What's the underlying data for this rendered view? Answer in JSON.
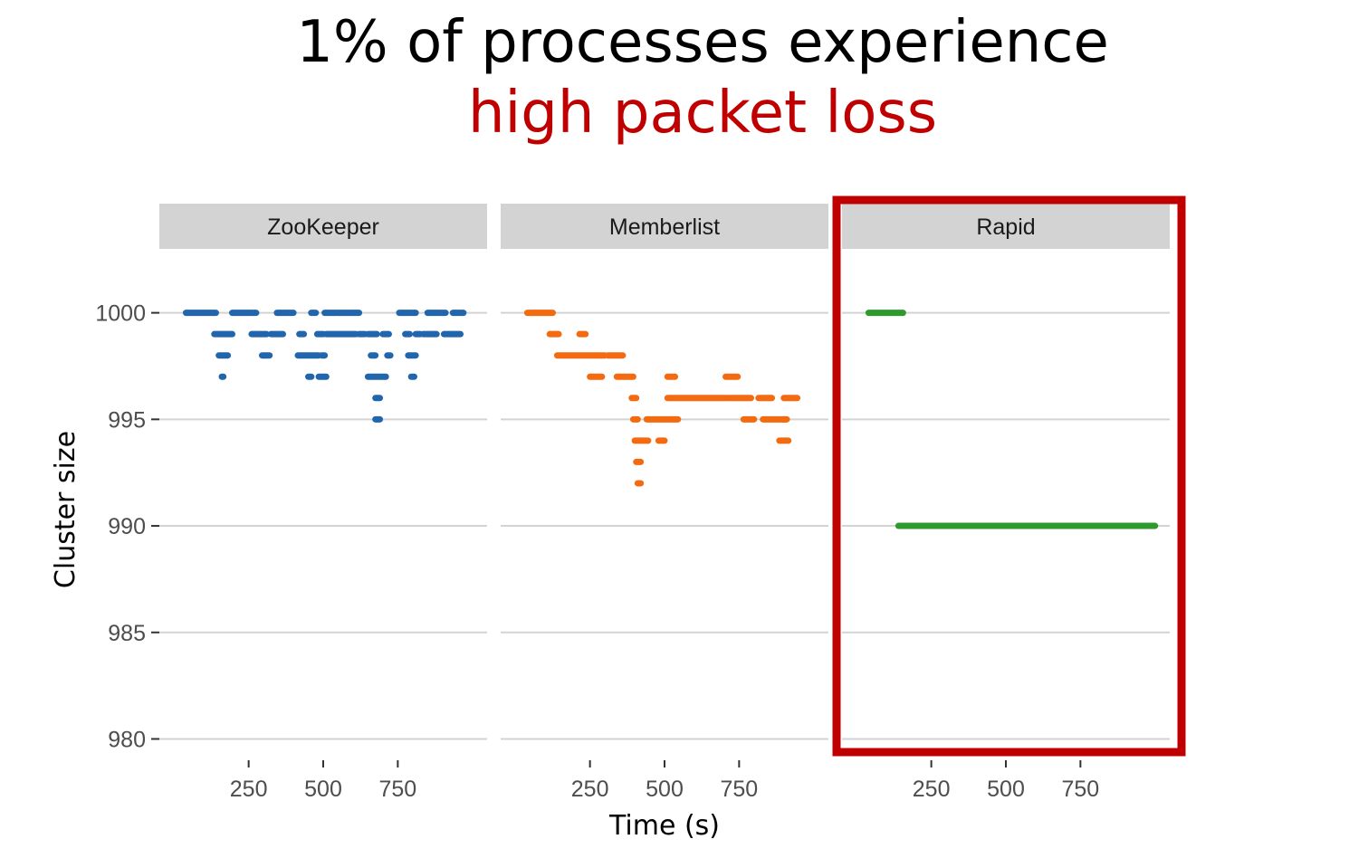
{
  "title": {
    "line1": "1% of processes experience",
    "line2": "high packet loss",
    "line2_color": "#c00000"
  },
  "highlight": {
    "panel": "Rapid",
    "color": "#c00000"
  },
  "colors": {
    "strip": "#d3d3d3",
    "grid": "#d3d3d3",
    "ZooKeeper": "#2166ac",
    "Memberlist": "#f46a11",
    "Rapid": "#2e9a2e"
  },
  "chart_data": {
    "type": "scatter",
    "xlabel": "Time (s)",
    "ylabel": "Cluster size",
    "xlim": [
      0,
      1000
    ],
    "ylim": [
      979,
      1003
    ],
    "x_ticks": [
      250,
      500,
      750
    ],
    "y_ticks": [
      980,
      985,
      990,
      995,
      1000
    ],
    "grid": "horizontal",
    "panels": [
      {
        "name": "ZooKeeper",
        "segments": [
          {
            "x": [
              40,
              140
            ],
            "y": 1000
          },
          {
            "x": [
              195,
              275
            ],
            "y": 1000
          },
          {
            "x": [
              345,
              400
            ],
            "y": 1000
          },
          {
            "x": [
              460,
              475
            ],
            "y": 1000
          },
          {
            "x": [
              505,
              545
            ],
            "y": 1000
          },
          {
            "x": [
              550,
              620
            ],
            "y": 1000
          },
          {
            "x": [
              755,
              810
            ],
            "y": 1000
          },
          {
            "x": [
              850,
              910
            ],
            "y": 1000
          },
          {
            "x": [
              935,
              970
            ],
            "y": 1000
          },
          {
            "x": [
              135,
              195
            ],
            "y": 999
          },
          {
            "x": [
              260,
              310
            ],
            "y": 999
          },
          {
            "x": [
              325,
              365
            ],
            "y": 999
          },
          {
            "x": [
              420,
              435
            ],
            "y": 999
          },
          {
            "x": [
              480,
              500
            ],
            "y": 999
          },
          {
            "x": [
              510,
              610
            ],
            "y": 999
          },
          {
            "x": [
              620,
              640
            ],
            "y": 999
          },
          {
            "x": [
              650,
              680
            ],
            "y": 999
          },
          {
            "x": [
              700,
              720
            ],
            "y": 999
          },
          {
            "x": [
              775,
              790
            ],
            "y": 999
          },
          {
            "x": [
              810,
              825
            ],
            "y": 999
          },
          {
            "x": [
              835,
              880
            ],
            "y": 999
          },
          {
            "x": [
              905,
              960
            ],
            "y": 999
          },
          {
            "x": [
              150,
              180
            ],
            "y": 998
          },
          {
            "x": [
              295,
              320
            ],
            "y": 998
          },
          {
            "x": [
              415,
              485
            ],
            "y": 998
          },
          {
            "x": [
              495,
              505
            ],
            "y": 998
          },
          {
            "x": [
              660,
              675
            ],
            "y": 998
          },
          {
            "x": [
              715,
              725
            ],
            "y": 998
          },
          {
            "x": [
              785,
              810
            ],
            "y": 998
          },
          {
            "x": [
              160,
              165
            ],
            "y": 997
          },
          {
            "x": [
              450,
              460
            ],
            "y": 997
          },
          {
            "x": [
              485,
              510
            ],
            "y": 997
          },
          {
            "x": [
              650,
              710
            ],
            "y": 997
          },
          {
            "x": [
              795,
              805
            ],
            "y": 997
          },
          {
            "x": [
              675,
              690
            ],
            "y": 996
          },
          {
            "x": [
              675,
              690
            ],
            "y": 995
          }
        ]
      },
      {
        "name": "Memberlist",
        "segments": [
          {
            "x": [
              40,
              125
            ],
            "y": 1000
          },
          {
            "x": [
              115,
              145
            ],
            "y": 999
          },
          {
            "x": [
              215,
              235
            ],
            "y": 999
          },
          {
            "x": [
              140,
              300
            ],
            "y": 998
          },
          {
            "x": [
              310,
              360
            ],
            "y": 998
          },
          {
            "x": [
              250,
              290
            ],
            "y": 997
          },
          {
            "x": [
              340,
              395
            ],
            "y": 997
          },
          {
            "x": [
              510,
              535
            ],
            "y": 997
          },
          {
            "x": [
              705,
              745
            ],
            "y": 997
          },
          {
            "x": [
              390,
              405
            ],
            "y": 996
          },
          {
            "x": [
              510,
              715
            ],
            "y": 996
          },
          {
            "x": [
              720,
              790
            ],
            "y": 996
          },
          {
            "x": [
              815,
              860
            ],
            "y": 996
          },
          {
            "x": [
              900,
              945
            ],
            "y": 996
          },
          {
            "x": [
              395,
              410
            ],
            "y": 995
          },
          {
            "x": [
              440,
              545
            ],
            "y": 995
          },
          {
            "x": [
              765,
              800
            ],
            "y": 995
          },
          {
            "x": [
              830,
              905
            ],
            "y": 995
          },
          {
            "x": [
              895,
              910
            ],
            "y": 995
          },
          {
            "x": [
              400,
              445
            ],
            "y": 994
          },
          {
            "x": [
              480,
              500
            ],
            "y": 994
          },
          {
            "x": [
              885,
              915
            ],
            "y": 994
          },
          {
            "x": [
              405,
              420
            ],
            "y": 993
          },
          {
            "x": [
              410,
              420
            ],
            "y": 992
          }
        ]
      },
      {
        "name": "Rapid",
        "segments": [
          {
            "x": [
              40,
              155
            ],
            "y": 1000
          },
          {
            "x": [
              140,
              1000
            ],
            "y": 990
          }
        ]
      }
    ]
  }
}
